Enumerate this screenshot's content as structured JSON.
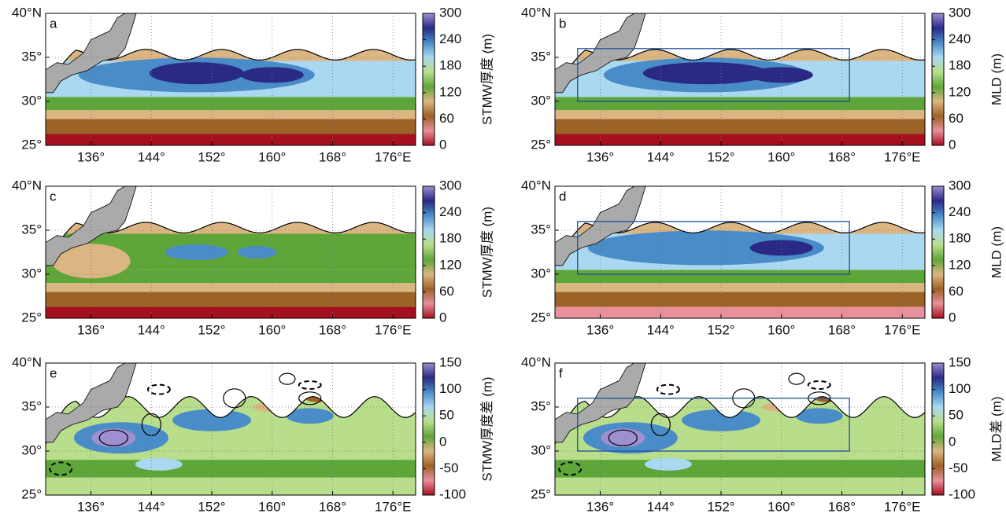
{
  "xlim": [
    130,
    179
  ],
  "ylim": [
    25,
    40
  ],
  "xticks": [
    {
      "value": 136,
      "label": "136°"
    },
    {
      "value": 144,
      "label": "144°"
    },
    {
      "value": 152,
      "label": "152°"
    },
    {
      "value": 160,
      "label": "160°"
    },
    {
      "value": 168,
      "label": "168°"
    },
    {
      "value": 176,
      "label": "176°E"
    }
  ],
  "yticks": [
    {
      "value": 25,
      "label": "25°"
    },
    {
      "value": 30,
      "label": "30°"
    },
    {
      "value": 35,
      "label": "35°"
    },
    {
      "value": 40,
      "label": "40°N"
    }
  ],
  "colormap": [
    "#a50f1e",
    "#e8909c",
    "#9c6326",
    "#dcb682",
    "#5fa63a",
    "#b8de8c",
    "#a9d8f0",
    "#4a8cc8",
    "#2a2a85",
    "#9d8fd0"
  ],
  "panels": [
    {
      "label": "a",
      "kind": "thickness",
      "colorbar_label": "STMW厚度 (m)",
      "clim": [
        0,
        300
      ],
      "cticks": [
        0,
        60,
        120,
        180,
        240,
        300
      ]
    },
    {
      "label": "b",
      "kind": "thickness",
      "colorbar_label": "MLD (m)",
      "clim": [
        0,
        300
      ],
      "cticks": [
        0,
        60,
        120,
        180,
        240,
        300
      ],
      "box": [
        133,
        169,
        30,
        36
      ]
    },
    {
      "label": "c",
      "kind": "thickness",
      "colorbar_label": "STMW厚度 (m)",
      "clim": [
        0,
        300
      ],
      "cticks": [
        0,
        60,
        120,
        180,
        240,
        300
      ]
    },
    {
      "label": "d",
      "kind": "thickness",
      "colorbar_label": "MLD (m)",
      "clim": [
        0,
        300
      ],
      "cticks": [
        0,
        60,
        120,
        180,
        240,
        300
      ],
      "box": [
        133,
        169,
        30,
        36
      ]
    },
    {
      "label": "e",
      "kind": "diff",
      "colorbar_label": "STMW厚度差 (m)",
      "clim": [
        -100,
        150
      ],
      "cticks": [
        -100,
        -50,
        0,
        50,
        100,
        150
      ]
    },
    {
      "label": "f",
      "kind": "diff",
      "colorbar_label": "MLD差 (m)",
      "clim": [
        -100,
        150
      ],
      "cticks": [
        -100,
        -50,
        0,
        50,
        100,
        150
      ],
      "box": [
        133,
        169,
        30,
        36
      ]
    }
  ]
}
